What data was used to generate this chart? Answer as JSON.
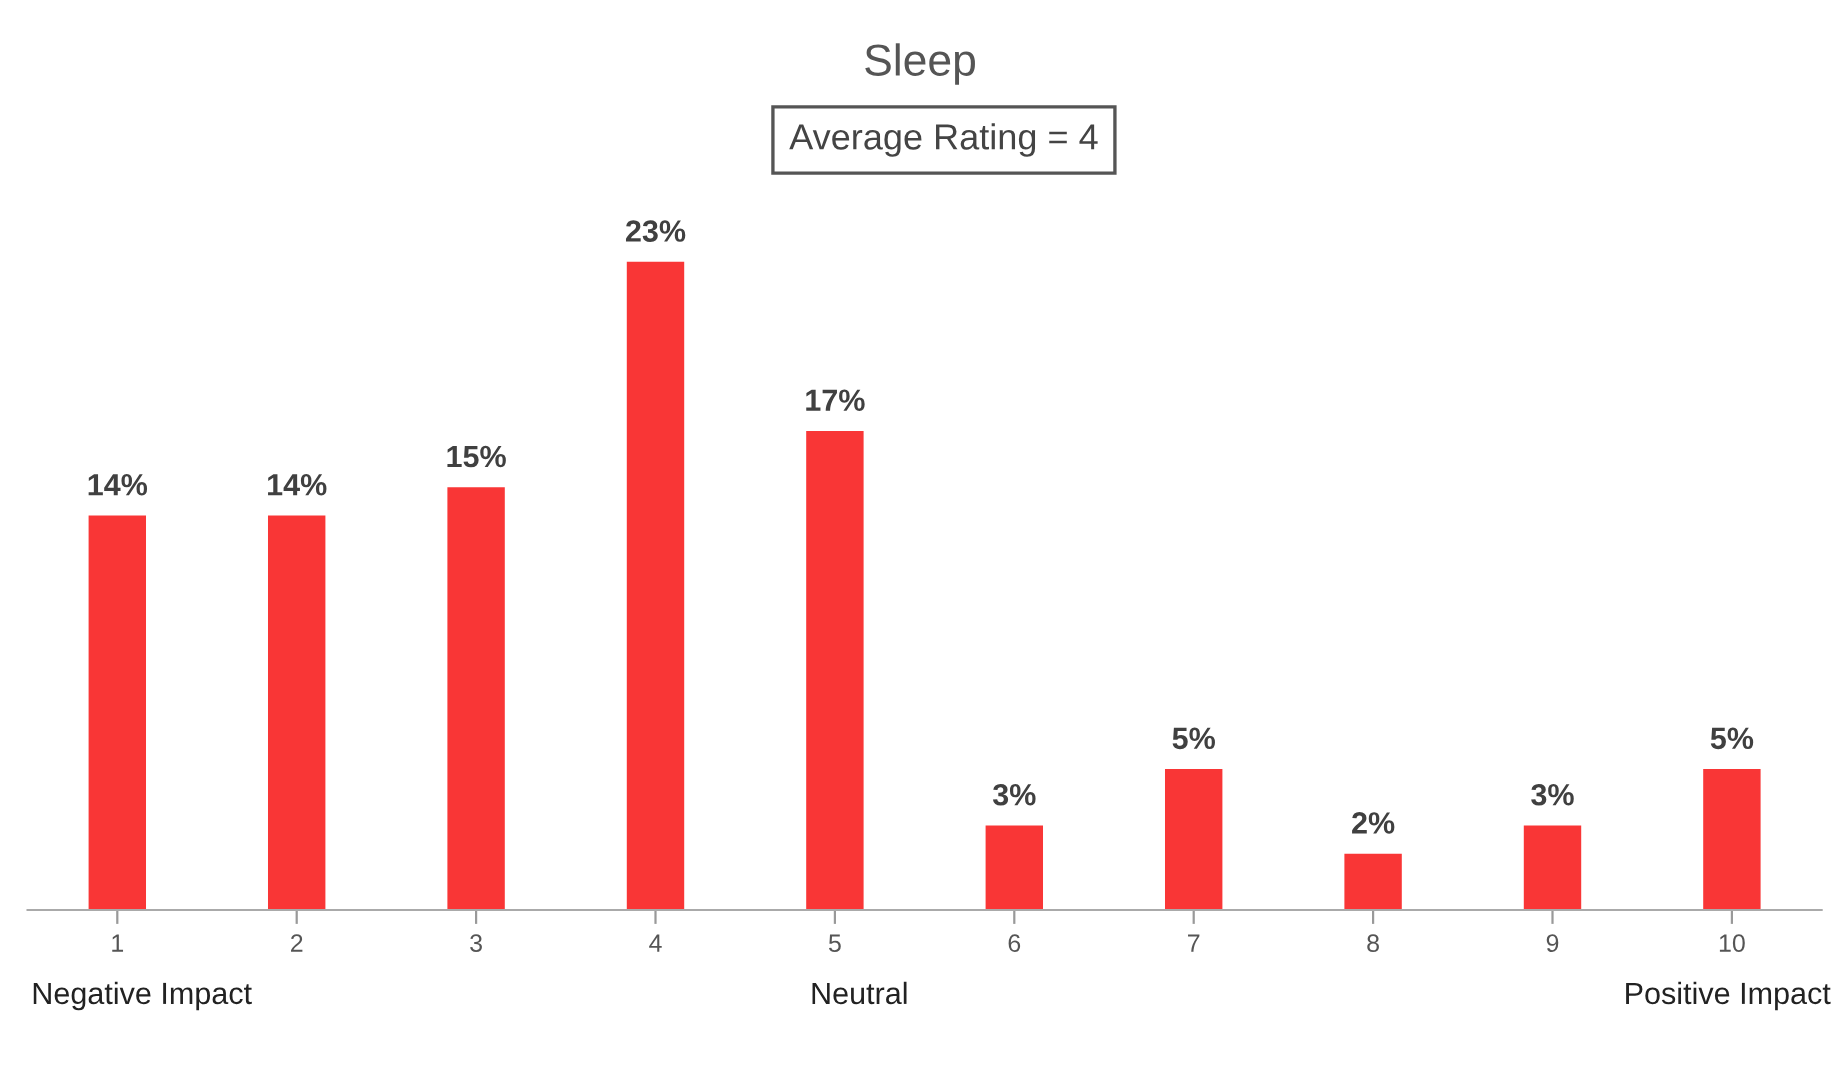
{
  "chart_data": {
    "type": "bar",
    "title": "Sleep",
    "categories": [
      "1",
      "2",
      "3",
      "4",
      "5",
      "6",
      "7",
      "8",
      "9",
      "10"
    ],
    "values": [
      14,
      14,
      15,
      23,
      17,
      3,
      5,
      2,
      3,
      5
    ],
    "value_labels": [
      "14%",
      "14%",
      "15%",
      "23%",
      "17%",
      "3%",
      "5%",
      "2%",
      "3%",
      "5%"
    ],
    "color": "#f93636",
    "annotations": [
      "Average Rating = 4",
      "Negative Impact",
      "Neutral",
      "Positive Impact"
    ],
    "grid": false,
    "legend": false
  }
}
